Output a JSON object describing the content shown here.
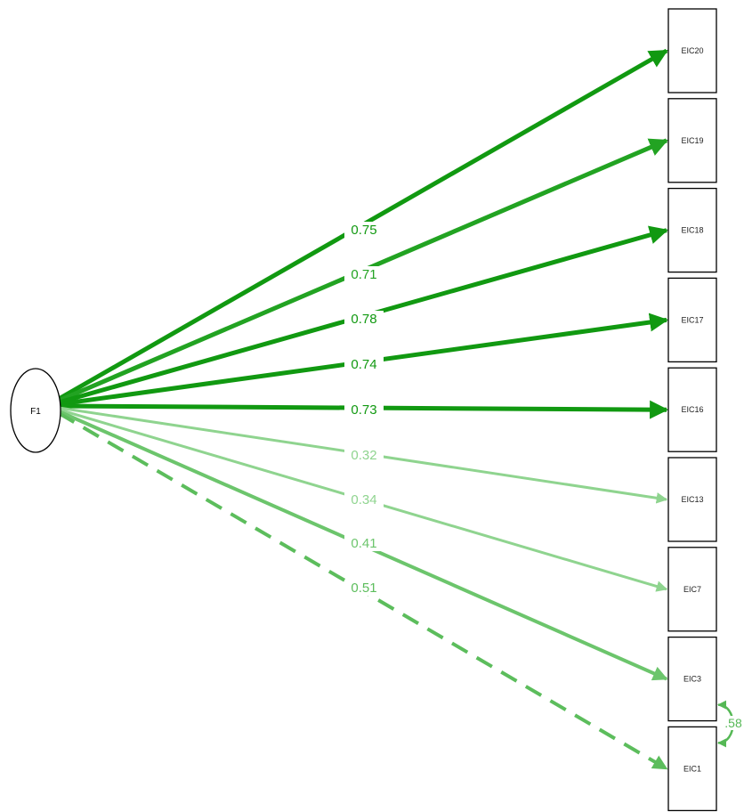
{
  "latent": {
    "label": "F1"
  },
  "indicators": [
    {
      "id": "EIC20",
      "label": "EIC20"
    },
    {
      "id": "EIC19",
      "label": "EIC19"
    },
    {
      "id": "EIC18",
      "label": "EIC18"
    },
    {
      "id": "EIC17",
      "label": "EIC17"
    },
    {
      "id": "EIC16",
      "label": "EIC16"
    },
    {
      "id": "EIC13",
      "label": "EIC13"
    },
    {
      "id": "EIC7",
      "label": "EIC7"
    },
    {
      "id": "EIC3",
      "label": "EIC3"
    },
    {
      "id": "EIC1",
      "label": "EIC1"
    }
  ],
  "loadings": [
    {
      "to": "EIC20",
      "value": "0.75",
      "color": "#119911",
      "style": "solid",
      "strength": "strong"
    },
    {
      "to": "EIC19",
      "value": "0.71",
      "color": "#22a322",
      "style": "solid",
      "strength": "strong"
    },
    {
      "to": "EIC18",
      "value": "0.78",
      "color": "#119911",
      "style": "solid",
      "strength": "strong"
    },
    {
      "to": "EIC17",
      "value": "0.74",
      "color": "#119911",
      "style": "solid",
      "strength": "strong"
    },
    {
      "to": "EIC16",
      "value": "0.73",
      "color": "#119911",
      "style": "solid",
      "strength": "strong"
    },
    {
      "to": "EIC13",
      "value": "0.32",
      "color": "#8fd48f",
      "style": "solid",
      "strength": "weak"
    },
    {
      "to": "EIC7",
      "value": "0.34",
      "color": "#8fd48f",
      "style": "solid",
      "strength": "weak"
    },
    {
      "to": "EIC3",
      "value": "0.41",
      "color": "#6cc56c",
      "style": "solid",
      "strength": "medium"
    },
    {
      "to": "EIC1",
      "value": "0.51",
      "color": "#5cbd5c",
      "style": "dashed",
      "strength": "medium"
    }
  ],
  "residual_covariance": {
    "between": [
      "EIC3",
      "EIC1"
    ],
    "value": ".58",
    "color": "#55b855"
  }
}
